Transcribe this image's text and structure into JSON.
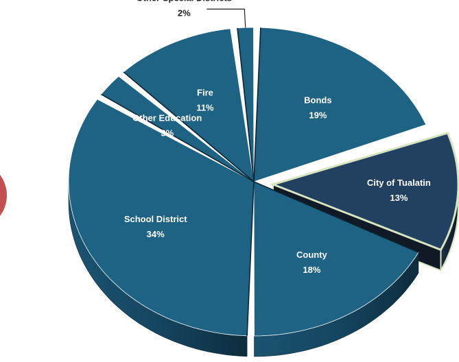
{
  "chart_data": {
    "type": "pie",
    "title": "",
    "slices": [
      {
        "label": "Bonds",
        "pct_text": "19%",
        "value": 19,
        "color": "#1e6384"
      },
      {
        "label": "City of Tualatin",
        "pct_text": "13%",
        "value": 13,
        "color": "#22405f",
        "exploded": true
      },
      {
        "label": "County",
        "pct_text": "18%",
        "value": 18,
        "color": "#1e6384"
      },
      {
        "label": "School District",
        "pct_text": "34%",
        "value": 34,
        "color": "#1e6384"
      },
      {
        "label": "Other Education",
        "pct_text": "3%",
        "value": 3,
        "color": "#1e6384"
      },
      {
        "label": "Fire",
        "pct_text": "11%",
        "value": 11,
        "color": "#1e6384"
      },
      {
        "label": "Other Special Districts",
        "pct_text": "2%",
        "value": 2,
        "color": "#1e6384"
      }
    ],
    "style": "3d-pie",
    "legend": "none",
    "colors": {
      "slice": "#1e6384",
      "highlight": "#22405f",
      "highlight_border": "#d6e4c0",
      "label_dark": "#222222",
      "label_light": "#ffffff",
      "side": "#143d52"
    }
  },
  "decoration": {
    "left_circle_color": "#c44f50"
  }
}
